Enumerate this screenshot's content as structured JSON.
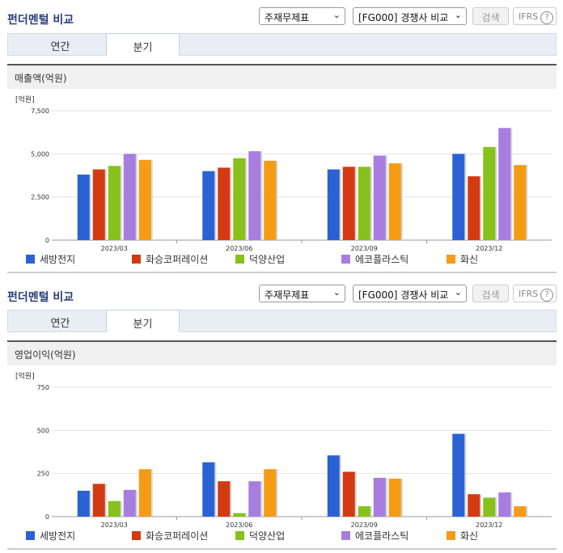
{
  "sections": [
    {
      "title": "펀더멘털 비교",
      "select1": "주재무제표",
      "select2": "[FG000] 경쟁사 비교",
      "search_label": "검색",
      "ifrs_label": "IFRS",
      "ifrs_help": "?",
      "tabs": [
        "연간",
        "분기"
      ],
      "active_tab": "분기",
      "panel_title": "매출액(억원)"
    },
    {
      "title": "펀더멘털 비교",
      "select1": "주재무제표",
      "select2": "[FG000] 경쟁사 비교",
      "search_label": "검색",
      "ifrs_label": "IFRS",
      "ifrs_help": "?",
      "tabs": [
        "연간",
        "분기"
      ],
      "active_tab": "분기",
      "panel_title": "영업이익(억원)"
    }
  ],
  "chart_data": [
    {
      "type": "bar",
      "unit_label": "[억원]",
      "categories": [
        "2023/03",
        "2023/06",
        "2023/09",
        "2023/12"
      ],
      "ylim": [
        0,
        7500
      ],
      "yticks": [
        "0",
        "2,500",
        "5,000",
        "7,500"
      ],
      "ytick_values": [
        0,
        2500,
        5000,
        7500
      ],
      "grid": true,
      "legend": "bottom",
      "series": [
        {
          "name": "세방전지",
          "color": "#2a62d6",
          "values": [
            3800,
            4000,
            4100,
            5000
          ]
        },
        {
          "name": "화승코퍼레이션",
          "color": "#d43a12",
          "values": [
            4100,
            4200,
            4250,
            3700
          ]
        },
        {
          "name": "덕양산업",
          "color": "#86c21b",
          "values": [
            4300,
            4750,
            4250,
            5400
          ]
        },
        {
          "name": "에코플라스틱",
          "color": "#a77ee0",
          "values": [
            5000,
            5150,
            4900,
            6500
          ]
        },
        {
          "name": "화신",
          "color": "#f59b14",
          "values": [
            4650,
            4600,
            4450,
            4350
          ]
        }
      ]
    },
    {
      "type": "bar",
      "unit_label": "[억원]",
      "categories": [
        "2023/03",
        "2023/06",
        "2023/09",
        "2023/12"
      ],
      "ylim": [
        0,
        750
      ],
      "yticks": [
        "0",
        "250",
        "500",
        "750"
      ],
      "ytick_values": [
        0,
        250,
        500,
        750
      ],
      "grid": true,
      "legend": "bottom",
      "series": [
        {
          "name": "세방전지",
          "color": "#2a62d6",
          "values": [
            150,
            315,
            355,
            480
          ]
        },
        {
          "name": "화승코퍼레이션",
          "color": "#d43a12",
          "values": [
            190,
            205,
            260,
            130
          ]
        },
        {
          "name": "덕양산업",
          "color": "#86c21b",
          "values": [
            90,
            20,
            60,
            110
          ]
        },
        {
          "name": "에코플라스틱",
          "color": "#a77ee0",
          "values": [
            155,
            205,
            225,
            140
          ]
        },
        {
          "name": "화신",
          "color": "#f59b14",
          "values": [
            275,
            275,
            220,
            60
          ]
        }
      ]
    }
  ]
}
